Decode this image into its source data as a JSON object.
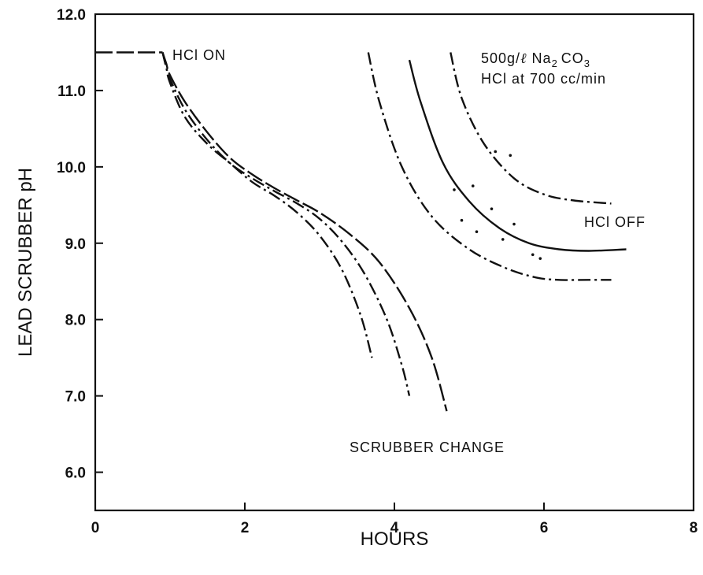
{
  "chart_data": {
    "type": "line",
    "title": "",
    "xlabel": "HOURS",
    "ylabel": "LEAD SCRUBBER pH",
    "xlim": [
      0,
      8
    ],
    "ylim": [
      5.5,
      12.0
    ],
    "x_ticks": [
      "0",
      "2",
      "4",
      "6",
      "8"
    ],
    "x_tick_values": [
      0,
      2,
      4,
      6,
      8
    ],
    "y_ticks": [
      "6.0",
      "7.0",
      "8.0",
      "9.0",
      "10.0",
      "11.0",
      "12.0"
    ],
    "y_tick_values": [
      6,
      7,
      8,
      9,
      10,
      11,
      12
    ],
    "grid": false,
    "legend": "none",
    "annotations": {
      "hcl_on": "HCl ON",
      "hcl_off": "HCl OFF",
      "scrubber_change": "SCRUBBER CHANGE",
      "conditions_line1_prefix": "500g/",
      "conditions_line1_unit": "ℓ",
      "conditions_line1_na": "Na",
      "conditions_line1_sub1": "2",
      "conditions_line1_co": "CO",
      "conditions_line1_sub2": "3",
      "conditions_line2": "HCl at 700 cc/min"
    },
    "series": [
      {
        "style": "long-dash",
        "x": [
          0,
          0.9
        ],
        "y": [
          11.5,
          11.5
        ]
      },
      {
        "style": "dash-dot",
        "x": [
          0.9,
          0.95,
          1.0,
          1.2,
          1.5,
          1.8,
          2.1,
          2.4,
          2.7,
          3.0,
          3.3,
          3.55,
          3.7
        ],
        "y": [
          11.5,
          11.3,
          11.1,
          10.65,
          10.3,
          10.05,
          9.8,
          9.62,
          9.4,
          9.1,
          8.65,
          8.05,
          7.5
        ]
      },
      {
        "style": "dash-dot",
        "x": [
          0.9,
          0.95,
          1.0,
          1.2,
          1.5,
          1.8,
          2.1,
          2.4,
          2.7,
          3.0,
          3.3,
          3.6,
          3.9,
          4.1,
          4.2
        ],
        "y": [
          11.5,
          11.3,
          11.15,
          10.75,
          10.35,
          10.05,
          9.85,
          9.68,
          9.52,
          9.32,
          9.02,
          8.6,
          8.0,
          7.4,
          7.0
        ]
      },
      {
        "style": "long-dash",
        "x": [
          0.9,
          0.95,
          1.0,
          1.2,
          1.5,
          1.8,
          2.1,
          2.4,
          2.7,
          3.0,
          3.4,
          3.8,
          4.2,
          4.5,
          4.7
        ],
        "y": [
          11.5,
          11.35,
          11.2,
          10.85,
          10.45,
          10.12,
          9.9,
          9.72,
          9.56,
          9.4,
          9.12,
          8.75,
          8.15,
          7.5,
          6.8
        ]
      },
      {
        "style": "dash-dot",
        "x": [
          3.65,
          3.8,
          4.1,
          4.5,
          5.0,
          5.5,
          5.9,
          6.2,
          6.6,
          6.9
        ],
        "y": [
          11.5,
          10.85,
          10.0,
          9.35,
          8.92,
          8.67,
          8.55,
          8.52,
          8.52,
          8.52
        ]
      },
      {
        "style": "solid",
        "x": [
          4.2,
          4.35,
          4.65,
          5.0,
          5.4,
          5.8,
          6.2,
          6.6,
          7.1
        ],
        "y": [
          11.4,
          10.85,
          10.05,
          9.55,
          9.2,
          9.0,
          8.92,
          8.9,
          8.92
        ]
      },
      {
        "style": "dash-dot",
        "x": [
          4.75,
          4.9,
          5.2,
          5.6,
          6.0,
          6.4,
          6.9
        ],
        "y": [
          11.5,
          10.9,
          10.3,
          9.85,
          9.64,
          9.56,
          9.52
        ]
      }
    ],
    "dots": [
      {
        "x": 4.8,
        "y": 9.7
      },
      {
        "x": 4.9,
        "y": 9.3
      },
      {
        "x": 5.05,
        "y": 9.75
      },
      {
        "x": 5.1,
        "y": 9.15
      },
      {
        "x": 5.3,
        "y": 9.45
      },
      {
        "x": 5.45,
        "y": 9.05
      },
      {
        "x": 5.35,
        "y": 10.2
      },
      {
        "x": 5.55,
        "y": 10.15
      },
      {
        "x": 5.6,
        "y": 9.25
      },
      {
        "x": 5.85,
        "y": 8.85
      },
      {
        "x": 5.95,
        "y": 8.8
      }
    ]
  }
}
